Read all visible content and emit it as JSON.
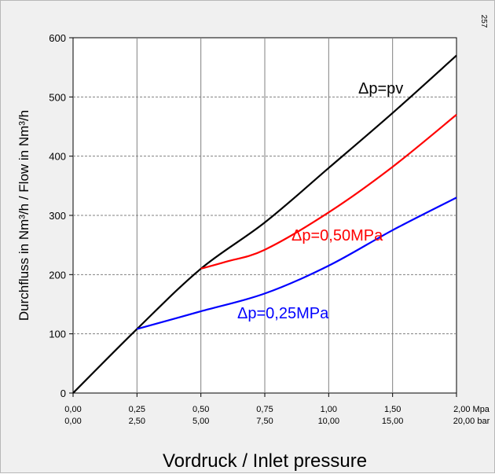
{
  "corner_code": "257",
  "chart_data": {
    "type": "line",
    "title": "",
    "xlabel": "Vordruck / Inlet pressure",
    "ylabel": "Durchfluss in Nm³/h  /  Flow in Nm³/h",
    "ylim": [
      0,
      600
    ],
    "yticks": [
      0,
      100,
      200,
      300,
      400,
      500,
      600
    ],
    "xlim": [
      0,
      2.0
    ],
    "x_tick_values": [
      0,
      0.25,
      0.5,
      0.75,
      1.0,
      1.5,
      2.0
    ],
    "x_tick_labels_top": [
      "0,00",
      "0,25",
      "0,50",
      "0,75",
      "1,00",
      "1,50",
      "2,00"
    ],
    "x_tick_labels_bottom": [
      "0,00",
      "2,50",
      "5,00",
      "7,50",
      "10,00",
      "15,00",
      "20,00"
    ],
    "x_unit_top": "Mpa",
    "x_unit_bottom": "bar",
    "grid": true,
    "series": [
      {
        "name": "Δp=pv",
        "color": "#000000",
        "points": [
          [
            0,
            0
          ],
          [
            0.25,
            108
          ],
          [
            0.5,
            210
          ],
          [
            0.75,
            288
          ],
          [
            1.0,
            380
          ],
          [
            1.5,
            473
          ],
          [
            2.0,
            570
          ]
        ]
      },
      {
        "name": "Δp=0,50MPa",
        "color": "#ff0000",
        "points": [
          [
            0.5,
            210
          ],
          [
            0.6,
            222
          ],
          [
            0.75,
            242
          ],
          [
            1.0,
            305
          ],
          [
            1.5,
            382
          ],
          [
            2.0,
            470
          ]
        ]
      },
      {
        "name": "Δp=0,25MPa",
        "color": "#0000ff",
        "points": [
          [
            0.25,
            108
          ],
          [
            0.5,
            138
          ],
          [
            0.75,
            168
          ],
          [
            1.0,
            215
          ],
          [
            1.5,
            275
          ],
          [
            2.0,
            330
          ]
        ]
      }
    ]
  }
}
